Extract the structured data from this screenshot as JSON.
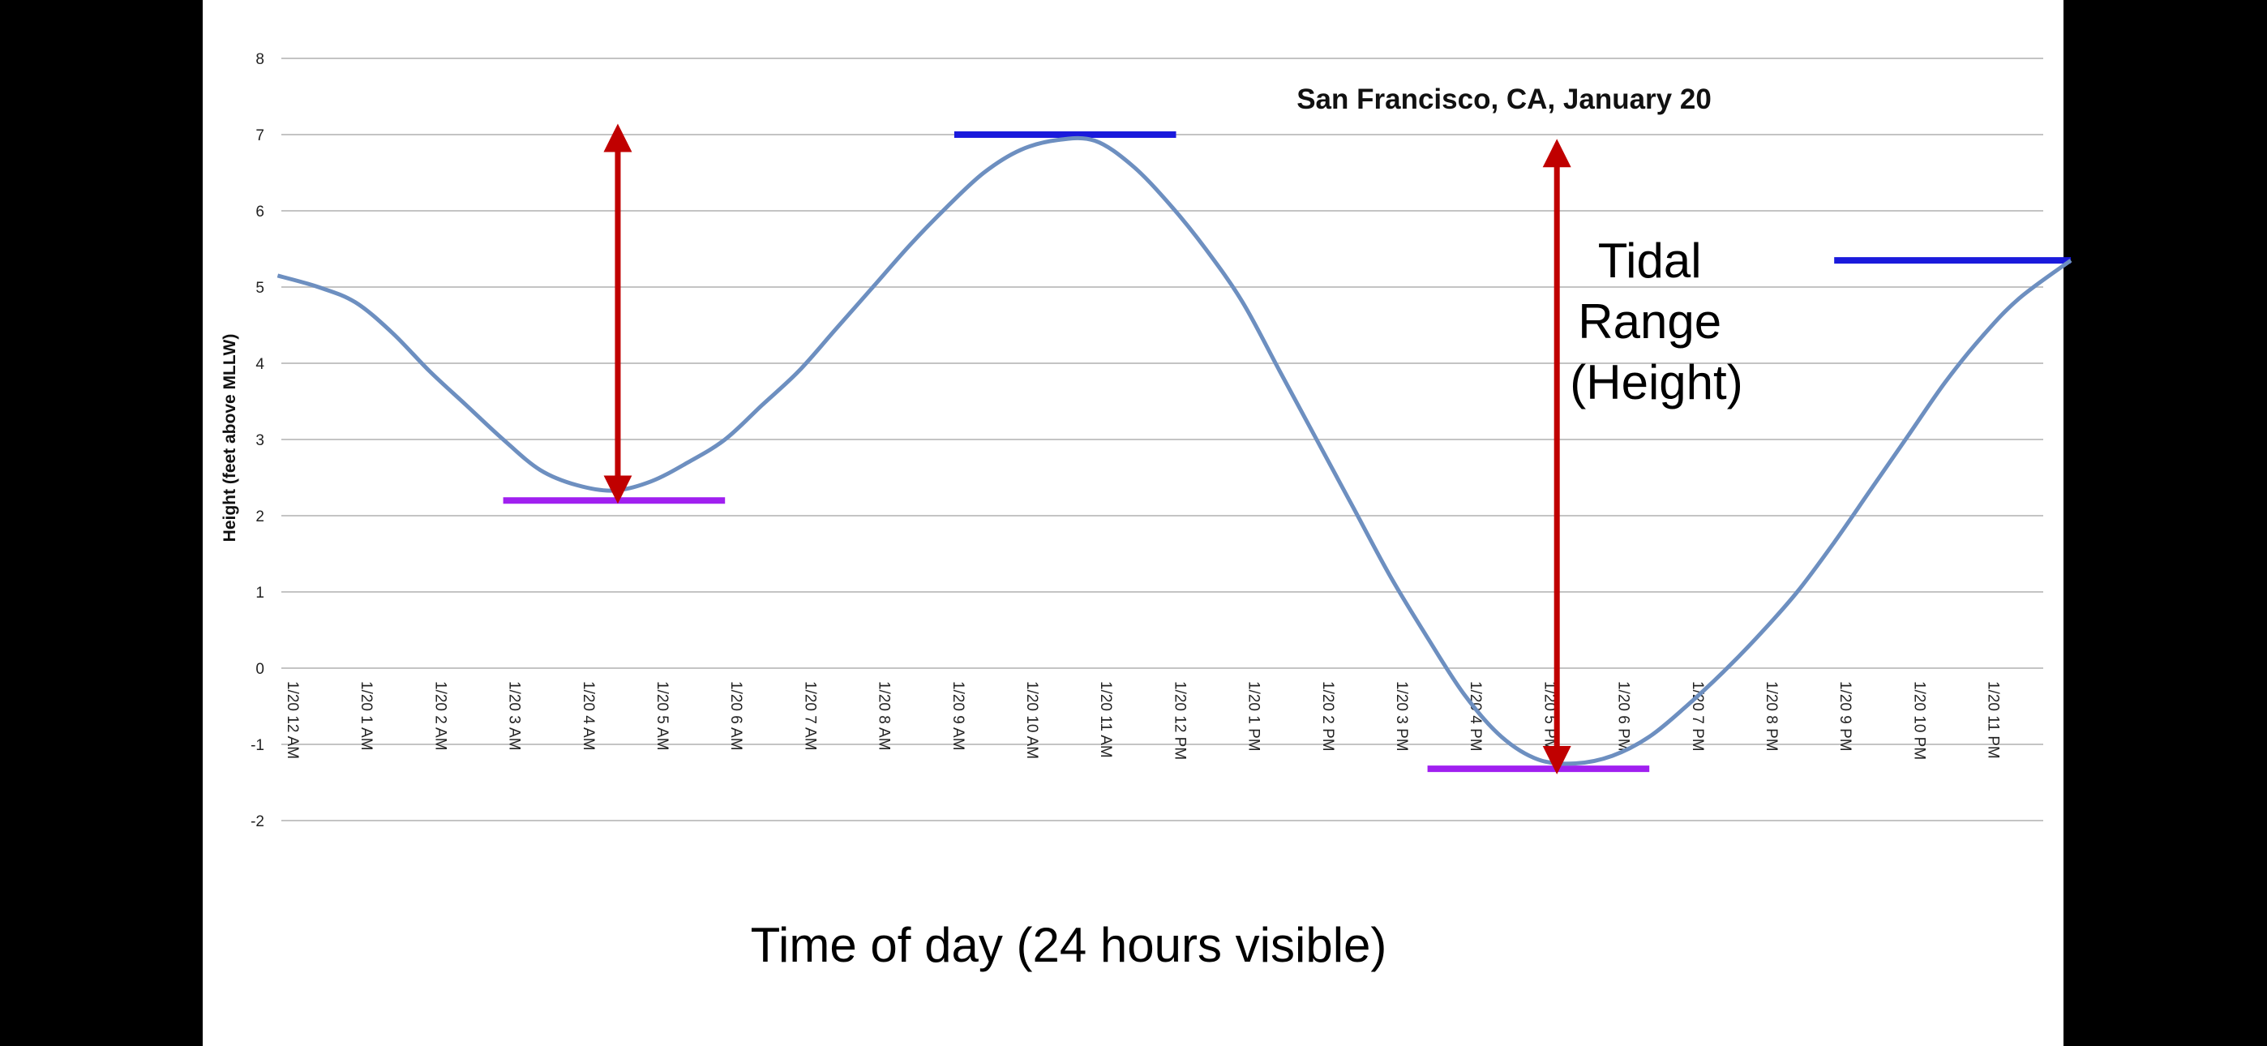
{
  "chart_data": {
    "type": "line",
    "title": "San Francisco, CA, January 20",
    "ylabel": "Height (feet above MLLW)",
    "xlabel": "Time of day (24 hours visible)",
    "ylim": [
      -2,
      8
    ],
    "yticks": [
      -2,
      -1,
      0,
      1,
      2,
      3,
      4,
      5,
      6,
      7,
      8
    ],
    "grid": true,
    "categories": [
      "1/20 12 AM",
      "1/20 1 AM",
      "1/20 2 AM",
      "1/20 3 AM",
      "1/20 4 AM",
      "1/20 5 AM",
      "1/20 6 AM",
      "1/20 7 AM",
      "1/20 8 AM",
      "1/20 9 AM",
      "1/20 10 AM",
      "1/20 11 AM",
      "1/20 12 PM",
      "1/20 1 PM",
      "1/20 2 PM",
      "1/20 3 PM",
      "1/20 4 PM",
      "1/20 5 PM",
      "1/20 6 PM",
      "1/20 7 PM",
      "1/20 8 PM",
      "1/20 9 PM",
      "1/20 10 PM",
      "1/20 11 PM"
    ],
    "series": [
      {
        "color": "#6d8fc0",
        "x": [
          -0.05,
          0.5,
          1.0,
          1.5,
          2.0,
          2.5,
          3.0,
          3.5,
          4.0,
          4.5,
          5.0,
          5.5,
          6.0,
          6.5,
          7.0,
          7.5,
          8.0,
          8.5,
          9.0,
          9.5,
          10.0,
          10.5,
          11.0,
          11.5,
          12.0,
          12.5,
          13.0,
          13.5,
          14.0,
          14.5,
          15.0,
          15.5,
          16.0,
          16.5,
          17.0,
          17.5,
          18.0,
          18.5,
          19.0,
          19.5,
          20.0,
          20.5,
          21.0,
          21.5,
          22.0,
          22.5,
          23.0,
          23.5,
          24.2
        ],
        "values": [
          5.15,
          5.0,
          4.8,
          4.4,
          3.9,
          3.45,
          3.0,
          2.6,
          2.4,
          2.33,
          2.45,
          2.7,
          3.0,
          3.45,
          3.9,
          4.45,
          5.0,
          5.55,
          6.05,
          6.5,
          6.8,
          6.93,
          6.92,
          6.6,
          6.1,
          5.5,
          4.8,
          3.9,
          3.0,
          2.1,
          1.2,
          0.4,
          -0.35,
          -0.9,
          -1.2,
          -1.25,
          -1.15,
          -0.9,
          -0.5,
          -0.05,
          0.45,
          1.0,
          1.65,
          2.35,
          3.05,
          3.75,
          4.35,
          4.85,
          5.35
        ]
      }
    ],
    "annotations": {
      "note": [
        "Tidal",
        "Range",
        "(Height)"
      ],
      "level_lines": [
        {
          "color": "#1a1adc",
          "y": 7.0,
          "x_from": 9.1,
          "x_to": 12.1
        },
        {
          "color": "#a020f0",
          "y": 2.2,
          "x_from": 3.0,
          "x_to": 6.0
        },
        {
          "color": "#a020f0",
          "y": -1.32,
          "x_from": 15.5,
          "x_to": 18.5
        },
        {
          "color": "#1a1adc",
          "y": 5.35,
          "x_from": 21.0,
          "x_to": 24.2
        }
      ],
      "range_arrows": [
        {
          "color": "#c00000",
          "x": 4.55,
          "y_from": 2.3,
          "y_to": 7.0
        },
        {
          "color": "#c00000",
          "x": 17.25,
          "y_from": -1.25,
          "y_to": 6.8
        }
      ]
    }
  }
}
